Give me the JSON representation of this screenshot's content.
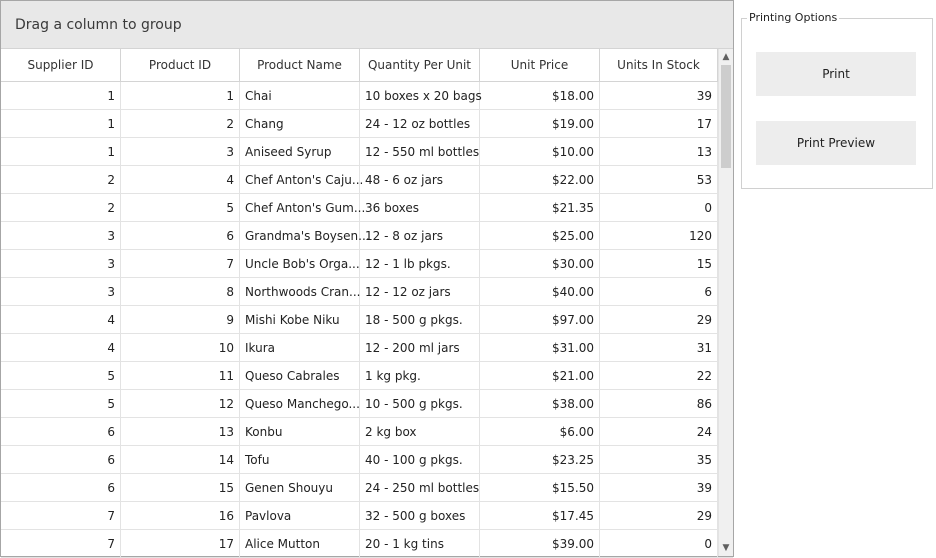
{
  "grid": {
    "group_panel_text": "Drag a column to group",
    "columns": [
      "Supplier ID",
      "Product ID",
      "Product Name",
      "Quantity Per Unit",
      "Unit Price",
      "Units In Stock"
    ],
    "rows": [
      [
        "1",
        "1",
        "Chai",
        "10 boxes x 20 bags",
        "$18.00",
        "39"
      ],
      [
        "1",
        "2",
        "Chang",
        "24 - 12 oz bottles",
        "$19.00",
        "17"
      ],
      [
        "1",
        "3",
        "Aniseed Syrup",
        "12 - 550 ml bottles",
        "$10.00",
        "13"
      ],
      [
        "2",
        "4",
        "Chef Anton's Caju...",
        "48 - 6 oz jars",
        "$22.00",
        "53"
      ],
      [
        "2",
        "5",
        "Chef Anton's Gum...",
        "36 boxes",
        "$21.35",
        "0"
      ],
      [
        "3",
        "6",
        "Grandma's  Boysen...",
        "12 - 8 oz jars",
        "$25.00",
        "120"
      ],
      [
        "3",
        "7",
        "Uncle Bob's Orga...",
        "12 - 1 lb pkgs.",
        "$30.00",
        "15"
      ],
      [
        "3",
        "8",
        "Northwoods  Cran...",
        "12 - 12 oz jars",
        "$40.00",
        "6"
      ],
      [
        "4",
        "9",
        "Mishi Kobe Niku",
        "18 - 500 g pkgs.",
        "$97.00",
        "29"
      ],
      [
        "4",
        "10",
        "Ikura",
        "12 - 200 ml jars",
        "$31.00",
        "31"
      ],
      [
        "5",
        "11",
        "Queso Cabrales",
        "1 kg pkg.",
        "$21.00",
        "22"
      ],
      [
        "5",
        "12",
        "Queso  Manchego...",
        "10 - 500 g pkgs.",
        "$38.00",
        "86"
      ],
      [
        "6",
        "13",
        "Konbu",
        "2 kg box",
        "$6.00",
        "24"
      ],
      [
        "6",
        "14",
        "Tofu",
        "40 - 100 g pkgs.",
        "$23.25",
        "35"
      ],
      [
        "6",
        "15",
        "Genen Shouyu",
        "24 - 250 ml bottles",
        "$15.50",
        "39"
      ],
      [
        "7",
        "16",
        "Pavlova",
        "32 - 500 g boxes",
        "$17.45",
        "29"
      ],
      [
        "7",
        "17",
        "Alice Mutton",
        "20 - 1 kg tins",
        "$39.00",
        "0"
      ]
    ]
  },
  "printing_options": {
    "title": "Printing Options",
    "print_label": "Print",
    "print_preview_label": "Print Preview"
  }
}
